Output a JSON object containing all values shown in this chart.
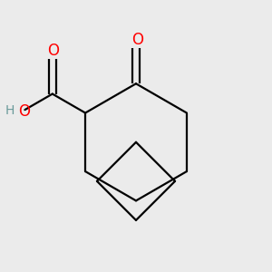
{
  "bg_color": "#ebebeb",
  "bond_color": "#000000",
  "oxygen_color": "#ff0000",
  "hydrogen_color": "#6a9a9a",
  "line_width": 1.6,
  "dbo": 0.018,
  "figsize": [
    3.0,
    3.0
  ],
  "dpi": 100,
  "xlim": [
    -0.65,
    0.65
  ],
  "ylim": [
    -0.62,
    0.68
  ]
}
